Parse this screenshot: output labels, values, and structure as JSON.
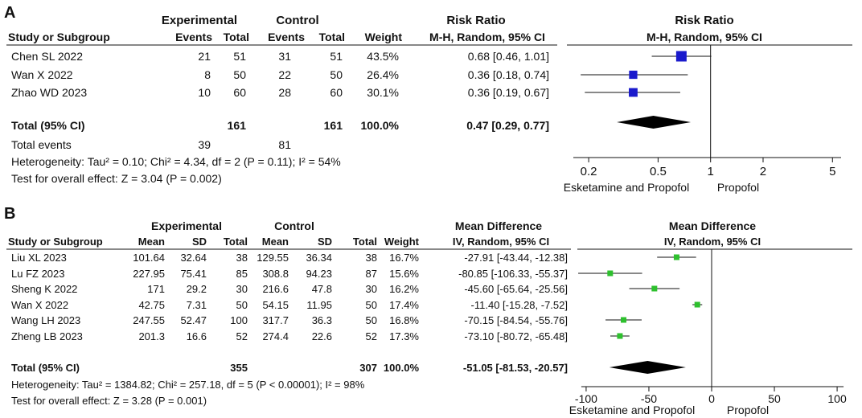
{
  "colors": {
    "panel_a_square": "#1a1acc",
    "panel_b_square": "#2ec02e",
    "diamond": "#000000",
    "text": "#111111"
  },
  "chart_data": [
    {
      "type": "forest",
      "label": "A",
      "headers": {
        "group1": "Experimental",
        "group2": "Control",
        "effect": "Risk Ratio",
        "plot": "Risk Ratio",
        "study": "Study or Subgroup",
        "events1": "Events",
        "total1": "Total",
        "events2": "Events",
        "total2": "Total",
        "weight": "Weight",
        "method": "M-H, Random, 95% CI",
        "plot_method": "M-H, Random, 95% CI"
      },
      "studies": [
        {
          "name": "Chen SL 2022",
          "events1": "21",
          "total1": "51",
          "events2": "31",
          "total2": "51",
          "weight": "43.5%",
          "ci_text": "0.68 [0.46, 1.01]",
          "est": 0.68,
          "lo": 0.46,
          "hi": 1.01
        },
        {
          "name": "Wan X 2022",
          "events1": "8",
          "total1": "50",
          "events2": "22",
          "total2": "50",
          "weight": "26.4%",
          "ci_text": "0.36 [0.18, 0.74]",
          "est": 0.36,
          "lo": 0.18,
          "hi": 0.74
        },
        {
          "name": "Zhao WD 2023",
          "events1": "10",
          "total1": "60",
          "events2": "28",
          "total2": "60",
          "weight": "30.1%",
          "ci_text": "0.36 [0.19, 0.67]",
          "est": 0.36,
          "lo": 0.19,
          "hi": 0.67
        }
      ],
      "total": {
        "label": "Total (95% CI)",
        "total1": "161",
        "total2": "161",
        "weight": "100.0%",
        "ci_text": "0.47 [0.29, 0.77]",
        "est": 0.47,
        "lo": 0.29,
        "hi": 0.77
      },
      "total_events": {
        "label": "Total events",
        "events1": "39",
        "events2": "81"
      },
      "heterogeneity": "Heterogeneity: Tau² = 0.10; Chi² = 4.34, df = 2 (P = 0.11); I² = 54%",
      "overall": "Test for overall effect: Z = 3.04 (P = 0.002)",
      "scale": "log",
      "null_value": 1,
      "xlim": [
        0.15,
        6.5
      ],
      "ticks": [
        0.2,
        0.5,
        1,
        2,
        5
      ],
      "tick_labels": [
        "0.2",
        "0.5",
        "1",
        "2",
        "5"
      ],
      "favours_left": "Esketamine and Propofol",
      "favours_right": "Propofol"
    },
    {
      "type": "forest",
      "label": "B",
      "headers": {
        "group1": "Experimental",
        "group2": "Control",
        "effect": "Mean Difference",
        "plot": "Mean Difference",
        "study": "Study or Subgroup",
        "mean1": "Mean",
        "sd1": "SD",
        "total1": "Total",
        "mean2": "Mean",
        "sd2": "SD",
        "total2": "Total",
        "weight": "Weight",
        "method": "IV, Random, 95% CI",
        "plot_method": "IV, Random, 95% CI"
      },
      "studies": [
        {
          "name": "Liu XL 2023",
          "mean1": "101.64",
          "sd1": "32.64",
          "total1": "38",
          "mean2": "129.55",
          "sd2": "36.34",
          "total2": "38",
          "weight": "16.7%",
          "ci_text": "-27.91 [-43.44, -12.38]",
          "est": -27.91,
          "lo": -43.44,
          "hi": -12.38
        },
        {
          "name": "Lu FZ 2023",
          "mean1": "227.95",
          "sd1": "75.41",
          "total1": "85",
          "mean2": "308.8",
          "sd2": "94.23",
          "total2": "87",
          "weight": "15.6%",
          "ci_text": "-80.85 [-106.33, -55.37]",
          "est": -80.85,
          "lo": -106.33,
          "hi": -55.37
        },
        {
          "name": "Sheng K 2022",
          "mean1": "171",
          "sd1": "29.2",
          "total1": "30",
          "mean2": "216.6",
          "sd2": "47.8",
          "total2": "30",
          "weight": "16.2%",
          "ci_text": "-45.60 [-65.64, -25.56]",
          "est": -45.6,
          "lo": -65.64,
          "hi": -25.56
        },
        {
          "name": "Wan X 2022",
          "mean1": "42.75",
          "sd1": "7.31",
          "total1": "50",
          "mean2": "54.15",
          "sd2": "11.95",
          "total2": "50",
          "weight": "17.4%",
          "ci_text": "-11.40 [-15.28, -7.52]",
          "est": -11.4,
          "lo": -15.28,
          "hi": -7.52
        },
        {
          "name": "Wang LH 2023",
          "mean1": "247.55",
          "sd1": "52.47",
          "total1": "100",
          "mean2": "317.7",
          "sd2": "36.3",
          "total2": "50",
          "weight": "16.8%",
          "ci_text": "-70.15 [-84.54, -55.76]",
          "est": -70.15,
          "lo": -84.54,
          "hi": -55.76
        },
        {
          "name": "Zheng LB 2023",
          "mean1": "201.3",
          "sd1": "16.6",
          "total1": "52",
          "mean2": "274.4",
          "sd2": "22.6",
          "total2": "52",
          "weight": "17.3%",
          "ci_text": "-73.10 [-80.72, -65.48]",
          "est": -73.1,
          "lo": -80.72,
          "hi": -65.48
        }
      ],
      "total": {
        "label": "Total (95% CI)",
        "total1": "355",
        "total2": "307",
        "weight": "100.0%",
        "ci_text": "-51.05 [-81.53, -20.57]",
        "est": -51.05,
        "lo": -81.53,
        "hi": -20.57
      },
      "heterogeneity": "Heterogeneity: Tau² = 1384.82; Chi² = 257.18, df = 5 (P < 0.00001); I² = 98%",
      "overall": "Test for overall effect: Z = 3.28 (P = 0.001)",
      "scale": "linear",
      "null_value": 0,
      "xlim": [
        -107,
        107
      ],
      "ticks": [
        -100,
        -50,
        0,
        50,
        100
      ],
      "tick_labels": [
        "-100",
        "-50",
        "0",
        "50",
        "100"
      ],
      "favours_left": "Esketamine and Propofol",
      "favours_right": "Propofol"
    }
  ]
}
